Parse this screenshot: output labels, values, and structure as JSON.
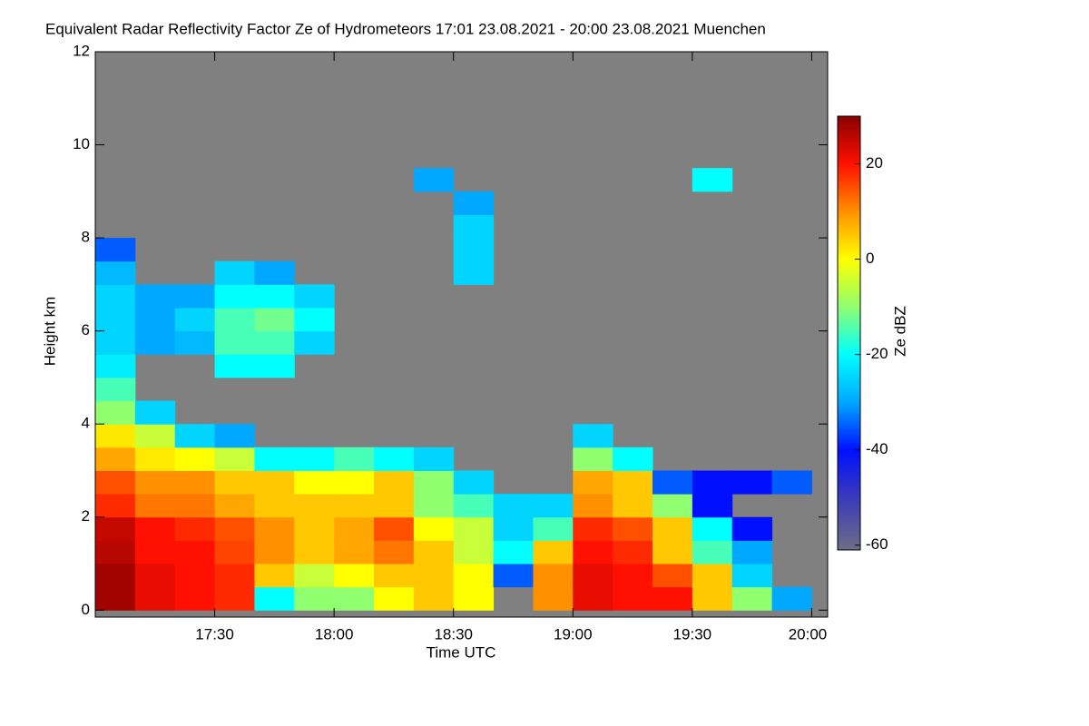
{
  "chart_data": {
    "type": "heatmap",
    "title": "Equivalent Radar Reflectivity Factor Ze of Hydrometeors   17:01 23.08.2021 - 20:00 23.08.2021 Muenchen",
    "x_label": "Time UTC",
    "y_label": "Height km",
    "colorbar_label": "Ze dBZ",
    "xlim": [
      0,
      184
    ],
    "ylim": [
      -0.15,
      12
    ],
    "xticks": [
      {
        "value": 30,
        "label": "17:30"
      },
      {
        "value": 60,
        "label": "18:00"
      },
      {
        "value": 90,
        "label": "18:30"
      },
      {
        "value": 120,
        "label": "19:00"
      },
      {
        "value": 150,
        "label": "19:30"
      },
      {
        "value": 180,
        "label": "20:00"
      }
    ],
    "yticks": [
      0,
      2,
      4,
      6,
      8,
      10,
      12
    ],
    "clim": [
      -61,
      30
    ],
    "cticks": [
      -60,
      -40,
      -20,
      0,
      20
    ],
    "background": "#808080",
    "colormap": [
      {
        "value": -61,
        "color": "#6e6e88"
      },
      {
        "value": -50,
        "color": "#3a3ab8"
      },
      {
        "value": -40,
        "color": "#0010ff"
      },
      {
        "value": -30,
        "color": "#00a8ff"
      },
      {
        "value": -20,
        "color": "#00ffff"
      },
      {
        "value": -10,
        "color": "#90ff70"
      },
      {
        "value": 0,
        "color": "#ffff00"
      },
      {
        "value": 10,
        "color": "#ff9000"
      },
      {
        "value": 20,
        "color": "#ff1000"
      },
      {
        "value": 30,
        "color": "#880000"
      }
    ],
    "x": [
      5,
      15,
      25,
      35,
      45,
      55,
      65,
      75,
      85,
      95,
      105,
      115,
      125,
      135,
      145,
      155,
      165,
      175
    ],
    "y": [
      0.25,
      0.75,
      1.25,
      1.75,
      2.25,
      2.75,
      3.25,
      3.75,
      4.25,
      4.75,
      5.25,
      5.75,
      6.25,
      6.75,
      7.25,
      7.75,
      8.25,
      8.75,
      9.25,
      9.75
    ],
    "values": [
      [
        28,
        28,
        26,
        25,
        18,
        15,
        8,
        2,
        -10,
        -15,
        -22,
        -25,
        -25,
        -25,
        -28,
        -35,
        null,
        null,
        null,
        null
      ],
      [
        22,
        22,
        20,
        20,
        12,
        10,
        2,
        -5,
        -25,
        null,
        null,
        -30,
        -30,
        -30,
        null,
        null,
        null,
        null,
        null,
        null
      ],
      [
        20,
        20,
        20,
        18,
        12,
        10,
        0,
        -25,
        null,
        null,
        null,
        -28,
        -25,
        -30,
        null,
        null,
        null,
        null,
        null,
        null
      ],
      [
        18,
        18,
        16,
        15,
        8,
        5,
        -5,
        -30,
        null,
        null,
        -20,
        -15,
        -15,
        -20,
        -25,
        null,
        null,
        null,
        null,
        null
      ],
      [
        -20,
        5,
        10,
        10,
        5,
        5,
        -20,
        null,
        null,
        null,
        -20,
        -15,
        -12,
        -20,
        -30,
        null,
        null,
        null,
        null,
        null
      ],
      [
        -10,
        -5,
        5,
        5,
        5,
        0,
        -20,
        null,
        null,
        null,
        null,
        -25,
        -20,
        -25,
        null,
        null,
        null,
        null,
        null,
        null
      ],
      [
        -10,
        0,
        8,
        8,
        5,
        0,
        -15,
        null,
        null,
        null,
        null,
        null,
        null,
        null,
        null,
        null,
        null,
        null,
        null,
        null
      ],
      [
        0,
        5,
        12,
        15,
        5,
        5,
        -20,
        null,
        null,
        null,
        null,
        null,
        null,
        null,
        null,
        null,
        null,
        null,
        null,
        null
      ],
      [
        5,
        5,
        5,
        0,
        -10,
        -10,
        -25,
        null,
        null,
        null,
        null,
        null,
        null,
        null,
        null,
        null,
        null,
        null,
        -30,
        null
      ],
      [
        0,
        0,
        -5,
        -5,
        -15,
        -25,
        null,
        null,
        null,
        null,
        null,
        null,
        null,
        null,
        -25,
        -25,
        -25,
        -30,
        null,
        null
      ],
      [
        null,
        -35,
        -20,
        -25,
        -25,
        null,
        null,
        null,
        null,
        null,
        null,
        null,
        null,
        null,
        null,
        null,
        null,
        null,
        null,
        null
      ],
      [
        10,
        10,
        5,
        -15,
        -25,
        null,
        null,
        null,
        null,
        null,
        null,
        null,
        null,
        null,
        null,
        null,
        null,
        null,
        null,
        null
      ],
      [
        22,
        22,
        20,
        18,
        10,
        8,
        -10,
        -25,
        null,
        null,
        null,
        null,
        null,
        null,
        null,
        null,
        null,
        null,
        null,
        null
      ],
      [
        20,
        20,
        18,
        15,
        5,
        5,
        -20,
        null,
        null,
        null,
        null,
        null,
        null,
        null,
        null,
        null,
        null,
        null,
        null,
        null
      ],
      [
        20,
        15,
        5,
        5,
        -10,
        -35,
        null,
        null,
        null,
        null,
        null,
        null,
        null,
        null,
        null,
        null,
        null,
        null,
        null,
        null
      ],
      [
        5,
        5,
        -15,
        -20,
        -40,
        -40,
        null,
        null,
        null,
        null,
        null,
        null,
        null,
        null,
        null,
        null,
        null,
        null,
        -20,
        null
      ],
      [
        -10,
        -25,
        -30,
        -40,
        null,
        -40,
        null,
        null,
        null,
        null,
        null,
        null,
        null,
        null,
        null,
        null,
        null,
        null,
        null,
        null
      ],
      [
        -30,
        null,
        null,
        null,
        null,
        -35,
        null,
        null,
        null,
        null,
        null,
        null,
        null,
        null,
        null,
        null,
        null,
        null,
        null,
        null
      ]
    ],
    "cell_width": 10,
    "cell_height": 0.5
  }
}
